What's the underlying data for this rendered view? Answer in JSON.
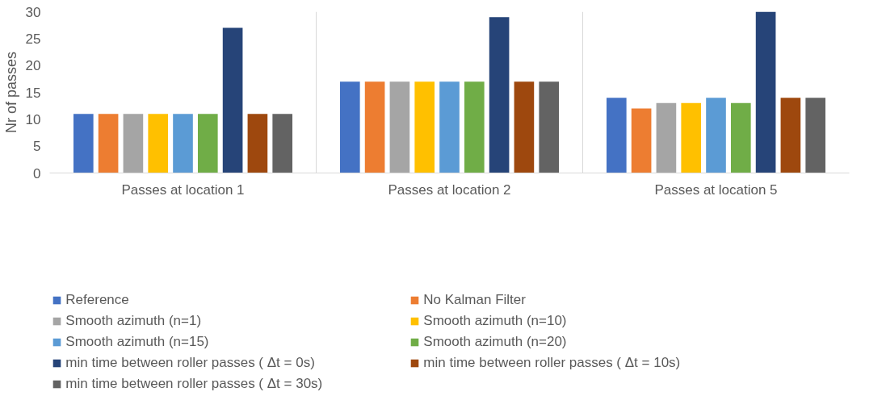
{
  "chart_data": {
    "type": "bar",
    "ylabel": "Nr of passes",
    "categories": [
      "Passes at location 1",
      "Passes at location 2",
      "Passes at location 5"
    ],
    "series": [
      {
        "name": "Reference",
        "color": "#4472c4",
        "values": [
          11,
          17,
          14
        ]
      },
      {
        "name": "No Kalman Filter",
        "color": "#ed7d31",
        "values": [
          11,
          17,
          12
        ]
      },
      {
        "name": "Smooth azimuth (n=1)",
        "color": "#a5a5a5",
        "values": [
          11,
          17,
          13
        ]
      },
      {
        "name": "Smooth azimuth (n=10)",
        "color": "#ffc000",
        "values": [
          11,
          17,
          13
        ]
      },
      {
        "name": "Smooth azimuth (n=15)",
        "color": "#5b9bd5",
        "values": [
          11,
          17,
          14
        ]
      },
      {
        "name": "Smooth azimuth (n=20)",
        "color": "#70ad47",
        "values": [
          11,
          17,
          13
        ]
      },
      {
        "name": "min time between roller passes ( Δt = 0s)",
        "color": "#264478",
        "values": [
          27,
          29,
          30
        ]
      },
      {
        "name": "min time between roller passes ( Δt = 10s)",
        "color": "#9e480e",
        "values": [
          11,
          17,
          14
        ]
      },
      {
        "name": "min time between roller passes ( Δt = 30s)",
        "color": "#636363",
        "values": [
          11,
          17,
          14
        ]
      }
    ],
    "ylim": [
      0,
      30
    ],
    "yticks": [
      0,
      5,
      10,
      15,
      20,
      25,
      30
    ],
    "grid": "x",
    "legend": "bottom"
  }
}
